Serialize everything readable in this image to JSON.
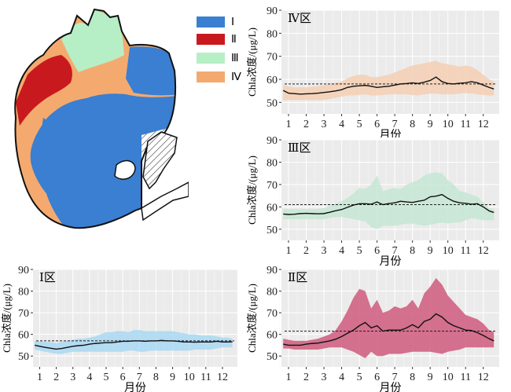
{
  "legend": [
    {
      "label": "Ⅰ",
      "color": "#3a7fd1"
    },
    {
      "label": "Ⅱ",
      "color": "#c81a1e"
    },
    {
      "label": "Ⅲ",
      "color": "#b6efc6"
    },
    {
      "label": "Ⅳ",
      "color": "#f4aa6f"
    }
  ],
  "chart_data": [
    {
      "type": "line",
      "title": "Ⅳ区",
      "xlabel": "月份",
      "ylabel": "Chla浓度/(μg/L)",
      "ylim": [
        45,
        90
      ],
      "xlim": [
        0.6,
        12.9
      ],
      "yticks": [
        50,
        60,
        70,
        80,
        90
      ],
      "xticks": [
        "1",
        "2",
        "3",
        "4",
        "5",
        "6",
        "7",
        "8",
        "9",
        "10",
        "11",
        "12"
      ],
      "grid": true,
      "band_color": "#f5cfb3",
      "reference_line": 58,
      "x": [
        0.7,
        1,
        1.33,
        1.67,
        2,
        2.33,
        2.67,
        3,
        3.33,
        3.67,
        4,
        4.33,
        4.67,
        5,
        5.33,
        5.67,
        6,
        6.33,
        6.67,
        7,
        7.33,
        7.67,
        8,
        8.33,
        8.67,
        9,
        9.33,
        9.67,
        10,
        10.33,
        10.67,
        11,
        11.33,
        11.67,
        12,
        12.33,
        12.6
      ],
      "series": [
        {
          "values": [
            55.2,
            54,
            53.8,
            53.6,
            53.7,
            53.8,
            54,
            54.3,
            54.6,
            55,
            55.5,
            56.5,
            57,
            57.2,
            57.4,
            57,
            56.5,
            56.8,
            57,
            57.5,
            58,
            58.2,
            58.5,
            58.2,
            58.8,
            59.5,
            61,
            59,
            58.2,
            58,
            58.3,
            58.5,
            59,
            58.5,
            57.5,
            56.5,
            55.8
          ]
        }
      ],
      "band_lower": [
        51,
        51,
        51,
        51,
        51,
        51,
        51,
        51,
        51.5,
        52,
        52.5,
        53,
        53,
        53.2,
        53.5,
        53,
        53,
        53.2,
        53.5,
        53.5,
        53.5,
        53.5,
        53.2,
        53,
        53.5,
        53.8,
        53.8,
        53.5,
        53.5,
        53.5,
        53.8,
        54,
        53.8,
        53.5,
        53.2,
        53,
        53
      ],
      "band_upper": [
        57.5,
        57,
        56.5,
        56.5,
        56.5,
        56.8,
        57,
        57.5,
        58,
        58.5,
        59,
        60.5,
        61.5,
        62,
        62,
        61,
        61,
        61.5,
        62,
        63,
        64,
        65,
        66,
        66.5,
        67,
        67.5,
        68,
        67,
        66.5,
        66,
        65.5,
        66,
        65.5,
        64,
        62,
        60,
        59
      ]
    },
    {
      "type": "line",
      "title": "Ⅲ区",
      "xlabel": "月份",
      "ylabel": "Chla浓度/(μg/L)",
      "ylim": [
        45,
        90
      ],
      "xlim": [
        0.6,
        12.9
      ],
      "yticks": [
        50,
        60,
        70,
        80,
        90
      ],
      "xticks": [
        "1",
        "2",
        "3",
        "4",
        "5",
        "6",
        "7",
        "8",
        "9",
        "10",
        "11",
        "12"
      ],
      "grid": true,
      "band_color": "#c6e6d4",
      "reference_line": 61,
      "x": [
        0.7,
        1,
        1.33,
        1.67,
        2,
        2.33,
        2.67,
        3,
        3.33,
        3.67,
        4,
        4.33,
        4.67,
        5,
        5.33,
        5.67,
        6,
        6.33,
        6.67,
        7,
        7.33,
        7.67,
        8,
        8.33,
        8.67,
        9,
        9.33,
        9.67,
        10,
        10.33,
        10.67,
        11,
        11.33,
        11.67,
        12,
        12.33,
        12.6
      ],
      "series": [
        {
          "values": [
            56.8,
            56.6,
            56.7,
            57,
            57.1,
            57,
            56.9,
            57,
            57.6,
            58.3,
            58.8,
            59.8,
            60.8,
            61.4,
            61.4,
            61.2,
            62.2,
            61,
            61.5,
            61.8,
            62.5,
            62.2,
            62,
            62.5,
            63,
            64.5,
            64.8,
            65.5,
            63.8,
            62.5,
            61.8,
            61.6,
            61.2,
            61.4,
            60,
            58.2,
            57.5
          ]
        }
      ],
      "band_lower": [
        54.5,
        54.5,
        54.5,
        54.5,
        54.5,
        54.5,
        54.5,
        54.5,
        55,
        55.5,
        55.5,
        55,
        54.5,
        54,
        53.5,
        51,
        50,
        51.5,
        51.5,
        51.5,
        52,
        52.5,
        52.5,
        52,
        51.5,
        52,
        52.5,
        53,
        52.5,
        53,
        53,
        54,
        55,
        54.5,
        54,
        54,
        54
      ],
      "band_upper": [
        59,
        59,
        59,
        59,
        59,
        59,
        59,
        59.5,
        60.5,
        61.5,
        62.5,
        64,
        66,
        68.5,
        68,
        70,
        74,
        67,
        68,
        68.5,
        68,
        70,
        71,
        72,
        74,
        75,
        75.5,
        75,
        72,
        70,
        67,
        66.5,
        65.5,
        64.5,
        62,
        59.5,
        59
      ]
    },
    {
      "type": "line",
      "title": "Ⅰ区",
      "xlabel": "月份",
      "ylabel": "Chla浓度/(μg/L)",
      "ylim": [
        45,
        90
      ],
      "xlim": [
        0.6,
        12.9
      ],
      "yticks": [
        50,
        60,
        70,
        80,
        90
      ],
      "xticks": [
        "1",
        "2",
        "3",
        "4",
        "5",
        "6",
        "7",
        "8",
        "9",
        "10",
        "11",
        "12"
      ],
      "grid": true,
      "band_color": "#a9d8f2",
      "reference_line": 57,
      "x": [
        0.7,
        1,
        1.33,
        1.67,
        2,
        2.33,
        2.67,
        3,
        3.33,
        3.67,
        4,
        4.33,
        4.67,
        5,
        5.33,
        5.67,
        6,
        6.33,
        6.67,
        7,
        7.33,
        7.67,
        8,
        8.33,
        8.67,
        9,
        9.33,
        9.67,
        10,
        10.33,
        10.67,
        11,
        11.33,
        11.67,
        12,
        12.33,
        12.6
      ],
      "series": [
        {
          "values": [
            55,
            54.5,
            54,
            53.6,
            53.2,
            53.5,
            54,
            54.5,
            54.8,
            55,
            55.5,
            55.8,
            56,
            56.2,
            56.2,
            56.5,
            56.8,
            56.8,
            57,
            57,
            56.8,
            57,
            57,
            57.2,
            57,
            57,
            56.8,
            56.5,
            56.5,
            56.4,
            56.5,
            56.5,
            56.5,
            56.8,
            56.5,
            56.5,
            56.6
          ]
        }
      ],
      "band_lower": [
        53,
        52.5,
        52,
        51.5,
        51,
        51,
        51.5,
        52,
        52,
        52,
        52,
        52,
        52,
        52,
        52,
        52,
        52,
        52.5,
        52.5,
        52,
        52,
        52.5,
        52.5,
        52.5,
        52.5,
        52.5,
        52.5,
        52.5,
        52.5,
        53,
        53,
        53,
        53,
        53.5,
        54,
        54,
        54
      ],
      "band_upper": [
        57,
        56.8,
        56.5,
        56.5,
        56,
        56.5,
        57,
        57.5,
        58,
        58,
        58.5,
        59,
        60,
        61,
        61,
        61.5,
        61.5,
        61,
        62,
        62,
        61.5,
        61.5,
        61.5,
        61.5,
        61.5,
        61.5,
        61,
        60.5,
        60,
        60,
        59.5,
        59.5,
        59.5,
        59,
        58.5,
        58.5,
        58
      ]
    },
    {
      "type": "line",
      "title": "Ⅱ区",
      "xlabel": "月份",
      "ylabel": "Chla浓度/(μg/L)",
      "ylim": [
        45,
        90
      ],
      "xlim": [
        0.6,
        12.9
      ],
      "yticks": [
        50,
        60,
        70,
        80,
        90
      ],
      "xticks": [
        "1",
        "2",
        "3",
        "4",
        "5",
        "6",
        "7",
        "8",
        "9",
        "10",
        "11",
        "12"
      ],
      "grid": true,
      "band_color": "#cf5a7c",
      "reference_line": 61.5,
      "x": [
        0.7,
        1,
        1.33,
        1.67,
        2,
        2.33,
        2.67,
        3,
        3.33,
        3.67,
        4,
        4.33,
        4.67,
        5,
        5.33,
        5.67,
        6,
        6.33,
        6.67,
        7,
        7.33,
        7.67,
        8,
        8.33,
        8.67,
        9,
        9.33,
        9.67,
        10,
        10.33,
        10.67,
        11,
        11.33,
        11.67,
        12,
        12.33,
        12.6
      ],
      "series": [
        {
          "values": [
            55.5,
            55,
            55,
            55,
            55.5,
            55.8,
            56,
            56.5,
            57,
            57.8,
            59,
            60.5,
            62,
            64,
            65.5,
            63,
            64,
            61.5,
            62,
            62,
            62,
            63,
            64.5,
            63,
            66,
            67,
            69.5,
            68,
            65.5,
            64,
            63,
            62,
            61.8,
            60.8,
            59.5,
            58,
            57
          ]
        }
      ],
      "band_lower": [
        53.5,
        53.5,
        53,
        53,
        53,
        53,
        53,
        53.5,
        54,
        54,
        54,
        53,
        52,
        50.5,
        49,
        52,
        50,
        50,
        51,
        51,
        51,
        51.5,
        52,
        52,
        52,
        52,
        51.5,
        51,
        52,
        52.5,
        53,
        54,
        54,
        54,
        54,
        54,
        54
      ],
      "band_upper": [
        58,
        57.5,
        57,
        57,
        57,
        57.5,
        58,
        59,
        60,
        62,
        66,
        71,
        77,
        81,
        80,
        72,
        76,
        70,
        71,
        73,
        72,
        73,
        76,
        72,
        79,
        82,
        86,
        83,
        78,
        75,
        72,
        69,
        68,
        67,
        65,
        62,
        61
      ]
    }
  ]
}
